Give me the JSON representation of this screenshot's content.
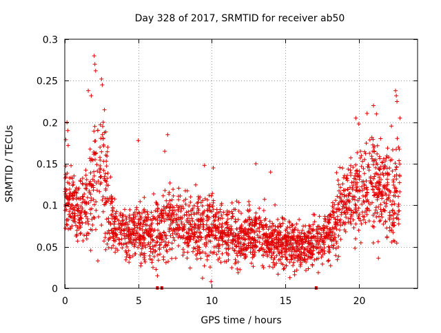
{
  "chart_data": {
    "type": "scatter",
    "title": "Day 328 of 2017, SRMTID for receiver ab50",
    "xlabel": "GPS time / hours",
    "ylabel": "SRMTID / TECUs",
    "xlim": [
      0,
      24
    ],
    "ylim": [
      0,
      0.3
    ],
    "x_ticks": [
      0,
      5,
      10,
      15,
      20
    ],
    "x_tick_labels": [
      "0",
      "5",
      "10",
      "15",
      "20"
    ],
    "y_ticks": [
      0,
      0.05,
      0.1,
      0.15,
      0.2,
      0.25,
      0.3
    ],
    "y_tick_labels": [
      "0",
      "0.05",
      "0.1",
      "0.15",
      "0.2",
      "0.25",
      "0.3"
    ],
    "grid": true,
    "marker": "plus",
    "series": [
      {
        "name": "SRMTID",
        "color": "#e00000",
        "profile_x": [
          0,
          0.3,
          0.6,
          1.0,
          1.5,
          2.0,
          2.5,
          3.0,
          3.5,
          4.0,
          5.0,
          6.0,
          7.0,
          8.0,
          9.0,
          10.0,
          11.0,
          12.0,
          13.0,
          14.0,
          15.0,
          16.0,
          17.0,
          18.0,
          19.0,
          20.0,
          21.0,
          22.0,
          22.8
        ],
        "profile_mean": [
          0.12,
          0.11,
          0.1,
          0.09,
          0.1,
          0.13,
          0.15,
          0.1,
          0.07,
          0.065,
          0.07,
          0.065,
          0.08,
          0.075,
          0.07,
          0.075,
          0.065,
          0.06,
          0.065,
          0.06,
          0.055,
          0.05,
          0.055,
          0.07,
          0.1,
          0.12,
          0.13,
          0.11,
          0.12
        ],
        "profile_spread": [
          0.03,
          0.035,
          0.025,
          0.025,
          0.03,
          0.05,
          0.06,
          0.035,
          0.02,
          0.02,
          0.022,
          0.022,
          0.03,
          0.025,
          0.025,
          0.025,
          0.022,
          0.022,
          0.022,
          0.022,
          0.02,
          0.018,
          0.02,
          0.025,
          0.03,
          0.035,
          0.04,
          0.035,
          0.045
        ],
        "peaks": [
          {
            "x": 2.0,
            "y": 0.28
          },
          {
            "x": 2.05,
            "y": 0.27
          },
          {
            "x": 2.1,
            "y": 0.262
          },
          {
            "x": 2.5,
            "y": 0.252
          },
          {
            "x": 2.55,
            "y": 0.245
          },
          {
            "x": 1.6,
            "y": 0.238
          },
          {
            "x": 1.8,
            "y": 0.232
          },
          {
            "x": 0.15,
            "y": 0.2
          },
          {
            "x": 0.2,
            "y": 0.19
          },
          {
            "x": 2.7,
            "y": 0.215
          },
          {
            "x": 5.0,
            "y": 0.178
          },
          {
            "x": 7.0,
            "y": 0.185
          },
          {
            "x": 6.8,
            "y": 0.165
          },
          {
            "x": 9.5,
            "y": 0.148
          },
          {
            "x": 10.1,
            "y": 0.145
          },
          {
            "x": 14.0,
            "y": 0.14
          },
          {
            "x": 13.0,
            "y": 0.15
          },
          {
            "x": 19.8,
            "y": 0.205
          },
          {
            "x": 20.0,
            "y": 0.198
          },
          {
            "x": 21.0,
            "y": 0.22
          },
          {
            "x": 21.2,
            "y": 0.21
          },
          {
            "x": 22.5,
            "y": 0.238
          },
          {
            "x": 22.55,
            "y": 0.232
          },
          {
            "x": 22.6,
            "y": 0.225
          },
          {
            "x": 22.8,
            "y": 0.205
          },
          {
            "x": 22.7,
            "y": 0.17
          },
          {
            "x": 9.95,
            "y": 0.008
          },
          {
            "x": 6.0,
            "y": 0.025
          },
          {
            "x": 6.3,
            "y": 0.015
          }
        ],
        "zeros": [
          6.3,
          6.6,
          17.1
        ]
      }
    ]
  }
}
